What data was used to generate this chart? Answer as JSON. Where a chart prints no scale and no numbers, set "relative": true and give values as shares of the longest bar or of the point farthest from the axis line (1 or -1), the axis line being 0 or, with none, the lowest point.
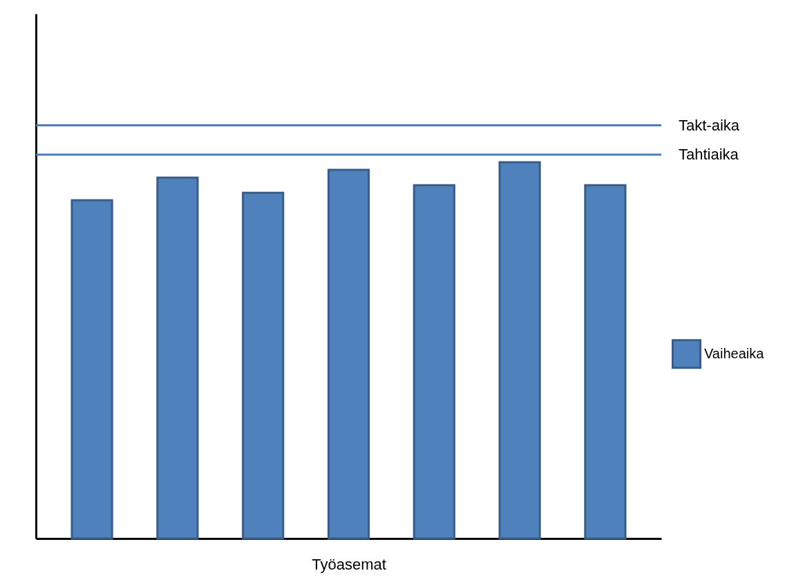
{
  "chart_data": {
    "type": "bar",
    "relative": true,
    "xlabel": "Työasemat",
    "legend": "right",
    "categories": [
      null,
      null,
      null,
      null,
      null,
      null,
      null
    ],
    "series": [
      {
        "name": "Vaiheaika",
        "color": "#4f81bd",
        "values": [
          0.899,
          0.959,
          0.919,
          0.98,
          0.939,
          1,
          0.939
        ]
      }
    ],
    "ref_lines": [
      {
        "axis": "y",
        "value": 1.098,
        "label": "Takt-aika",
        "color": "#4a7ebb"
      },
      {
        "axis": "y",
        "value": 1.02,
        "label": "Tahtiaika",
        "color": "#4a7ebb"
      }
    ]
  }
}
